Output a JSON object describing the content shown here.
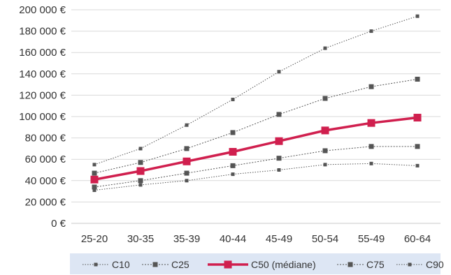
{
  "chart_data": {
    "type": "line",
    "categories": [
      "25-20",
      "30-35",
      "35-39",
      "40-44",
      "45-49",
      "50-54",
      "55-49",
      "60-64"
    ],
    "ylim": [
      0,
      200000
    ],
    "yticks": [
      "0 €",
      "20 000 €",
      "40 000 €",
      "60 000 €",
      "80 000 €",
      "100 000 €",
      "120 000 €",
      "140 000 €",
      "160 000 €",
      "180 000 €",
      "200 000 €"
    ],
    "ytick_values": [
      0,
      20000,
      40000,
      60000,
      80000,
      100000,
      120000,
      140000,
      160000,
      180000,
      200000
    ],
    "grid": true,
    "legend_position": "bottom",
    "series": [
      {
        "name": "C10",
        "values": [
          31000,
          36000,
          40000,
          46000,
          50000,
          55000,
          56000,
          54000
        ],
        "color": "#555555",
        "style": "dotted-small"
      },
      {
        "name": "C25",
        "values": [
          34000,
          40000,
          47000,
          54000,
          61000,
          68000,
          72000,
          72000
        ],
        "color": "#555555",
        "style": "dotted-medium"
      },
      {
        "name": "C50 (médiane)",
        "values": [
          41000,
          49000,
          58000,
          67000,
          77000,
          87000,
          94000,
          99000
        ],
        "color": "#d01f4e",
        "style": "bold"
      },
      {
        "name": "C75",
        "values": [
          47000,
          57000,
          70000,
          85000,
          102000,
          117000,
          128000,
          135000
        ],
        "color": "#555555",
        "style": "dotted-medium"
      },
      {
        "name": "C90",
        "values": [
          55000,
          70000,
          92000,
          116000,
          142000,
          164000,
          180000,
          194000
        ],
        "color": "#555555",
        "style": "dotted-small"
      }
    ]
  },
  "legend_bg": "#dde6f4"
}
